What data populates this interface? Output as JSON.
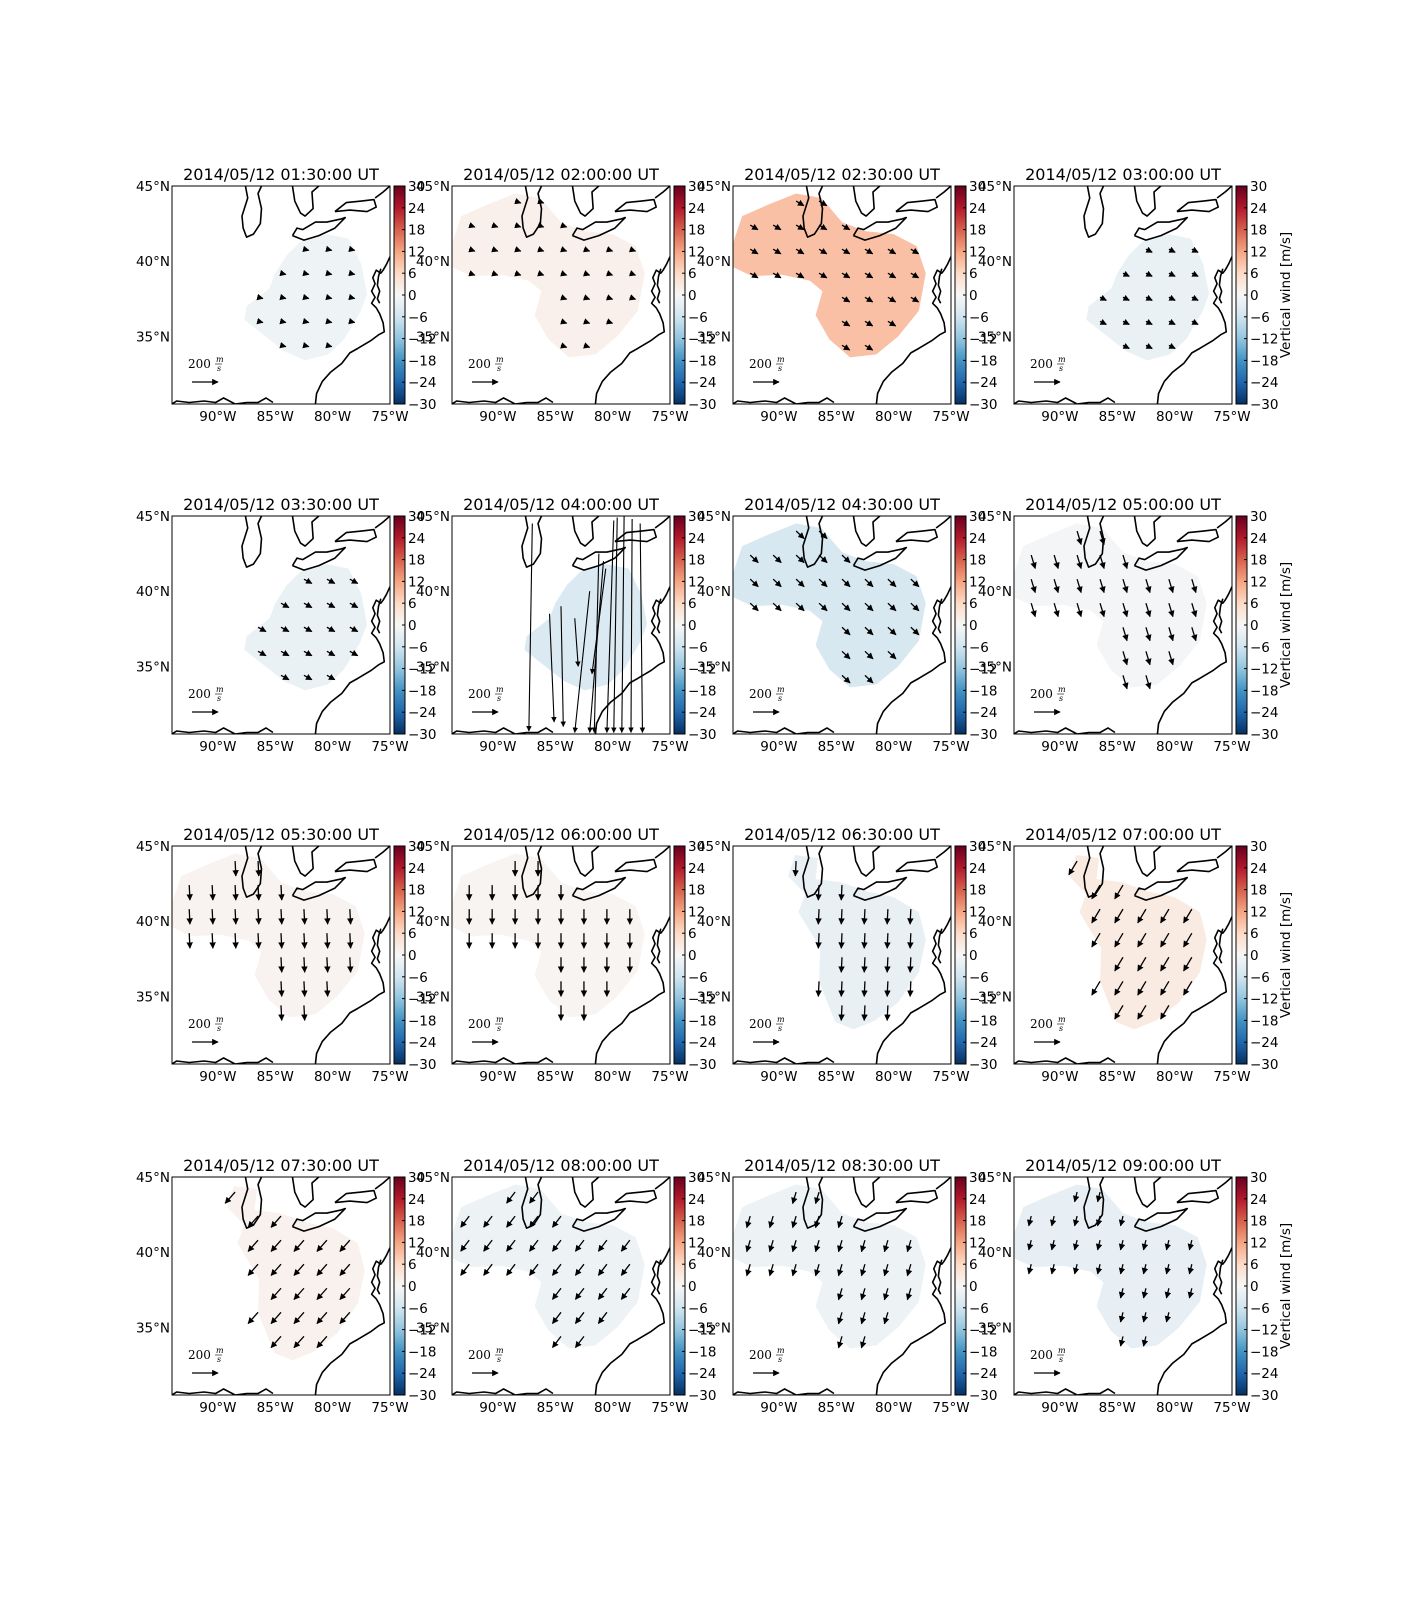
{
  "map": {
    "lon_range": [
      -94,
      -75
    ],
    "lat_range": [
      30.5,
      45
    ],
    "lon_ticks": [
      -90,
      -85,
      -80,
      -75
    ],
    "lat_ticks": [
      45,
      40,
      35
    ],
    "lon_tick_labels": [
      "90°W",
      "85°W",
      "80°W",
      "75°W"
    ],
    "lat_tick_labels": [
      "45°N",
      "40°N",
      "35°N"
    ],
    "coastlines": "black",
    "grid": false
  },
  "colorbar": {
    "colormap": "RdBu_r",
    "range": [
      -30,
      30
    ],
    "tick_labels": [
      "30",
      "24",
      "18",
      "12",
      "6",
      "0",
      "−6",
      "−12",
      "−18",
      "−24",
      "−30"
    ],
    "label": "Vertical wind [m/s]",
    "color_stops": [
      "#053061",
      "#2166ac",
      "#4393c3",
      "#92c5de",
      "#d1e5f0",
      "#f7f7f7",
      "#fddbc7",
      "#f4a582",
      "#d6604d",
      "#b2182b",
      "#67001f"
    ]
  },
  "reference_vector": {
    "value": "200",
    "unit_num": "m",
    "unit_den": "s"
  },
  "panels": [
    {
      "title": "2014/05/12 01:30:00 UT",
      "vertical_wind": -1.5,
      "vector_dir": [
        1.0,
        -0.25
      ],
      "vector_len": 0.25,
      "region": "east"
    },
    {
      "title": "2014/05/12 02:00:00 UT",
      "vertical_wind": 1.5,
      "vector_dir": [
        1.0,
        -0.35
      ],
      "vector_len": 0.3,
      "region": "both"
    },
    {
      "title": "2014/05/12 02:30:00 UT",
      "vertical_wind": 9.0,
      "vector_dir": [
        1.0,
        -0.6
      ],
      "vector_len": 0.45,
      "region": "both"
    },
    {
      "title": "2014/05/12 03:00:00 UT",
      "vertical_wind": -2.0,
      "vector_dir": [
        1.0,
        -0.5
      ],
      "vector_len": 0.35,
      "region": "east"
    },
    {
      "title": "2014/05/12 03:30:00 UT",
      "vertical_wind": -2.0,
      "vector_dir": [
        1.0,
        -0.55
      ],
      "vector_len": 0.45,
      "region": "east"
    },
    {
      "title": "2014/05/12 04:00:00 UT",
      "vertical_wind": -4.5,
      "vector_dir": [
        0.0,
        -1.0
      ],
      "vector_len": 0.0,
      "region": "east",
      "spurious_vectors": true
    },
    {
      "title": "2014/05/12 04:30:00 UT",
      "vertical_wind": -5.0,
      "vector_dir": [
        0.8,
        -0.75
      ],
      "vector_len": 0.55,
      "region": "both"
    },
    {
      "title": "2014/05/12 05:00:00 UT",
      "vertical_wind": -0.6,
      "vector_dir": [
        0.3,
        -1.0
      ],
      "vector_len": 0.7,
      "region": "both"
    },
    {
      "title": "2014/05/12 05:30:00 UT",
      "vertical_wind": 0.8,
      "vector_dir": [
        0.05,
        -1.0
      ],
      "vector_len": 0.75,
      "region": "both"
    },
    {
      "title": "2014/05/12 06:00:00 UT",
      "vertical_wind": 0.6,
      "vector_dir": [
        0.0,
        -1.0
      ],
      "vector_len": 0.75,
      "region": "both"
    },
    {
      "title": "2014/05/12 06:30:00 UT",
      "vertical_wind": -2.2,
      "vector_dir": [
        -0.05,
        -1.0
      ],
      "vector_len": 0.75,
      "region": "mid"
    },
    {
      "title": "2014/05/12 07:00:00 UT",
      "vertical_wind": 2.6,
      "vector_dir": [
        -0.6,
        -1.0
      ],
      "vector_len": 0.8,
      "region": "mid"
    },
    {
      "title": "2014/05/12 07:30:00 UT",
      "vertical_wind": 1.3,
      "vector_dir": [
        -0.75,
        -0.85
      ],
      "vector_len": 0.75,
      "region": "mid"
    },
    {
      "title": "2014/05/12 08:00:00 UT",
      "vertical_wind": -1.6,
      "vector_dir": [
        -0.65,
        -0.85
      ],
      "vector_len": 0.7,
      "region": "both"
    },
    {
      "title": "2014/05/12 08:30:00 UT",
      "vertical_wind": -1.6,
      "vector_dir": [
        -0.3,
        -1.0
      ],
      "vector_len": 0.6,
      "region": "both"
    },
    {
      "title": "2014/05/12 09:00:00 UT",
      "vertical_wind": -2.6,
      "vector_dir": [
        -0.25,
        -1.0
      ],
      "vector_len": 0.5,
      "region": "both"
    }
  ]
}
